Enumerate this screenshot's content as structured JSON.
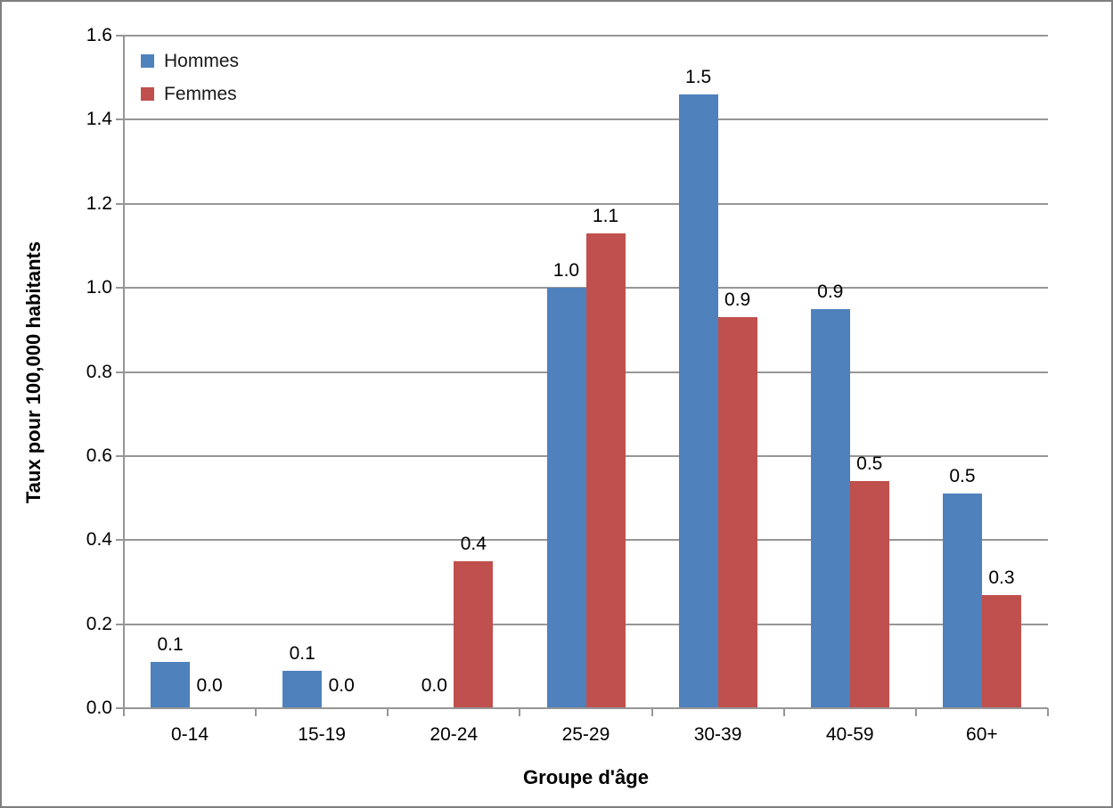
{
  "chart_data": {
    "type": "bar",
    "title": "",
    "categories": [
      "0-14",
      "15-19",
      "20-24",
      "25-29",
      "30-39",
      "40-59",
      "60+"
    ],
    "series": [
      {
        "name": "Hommes",
        "color": "#4F81BD",
        "values": [
          0.11,
          0.09,
          0.0,
          1.0,
          1.46,
          0.95,
          0.51
        ],
        "data_labels": [
          "0.1",
          "0.1",
          "0.0",
          "1.0",
          "1.5",
          "0.9",
          "0.5"
        ]
      },
      {
        "name": "Femmes",
        "color": "#C0504D",
        "values": [
          0.0,
          0.0,
          0.35,
          1.13,
          0.93,
          0.54,
          0.27
        ],
        "data_labels": [
          "0.0",
          "0.0",
          "0.4",
          "1.1",
          "0.9",
          "0.5",
          "0.3"
        ]
      }
    ],
    "xlabel": "Groupe d'âge",
    "ylabel": "Taux pour 100,000 habitants",
    "ylim": [
      0,
      1.6
    ],
    "ytick_step": 0.2,
    "yticks": [
      "0.0",
      "0.2",
      "0.4",
      "0.6",
      "0.8",
      "1.0",
      "1.2",
      "1.4",
      "1.6"
    ],
    "grid": true,
    "legend_position": "top-left-inside",
    "gridline_color": "#969696",
    "text_color": "#000000"
  }
}
